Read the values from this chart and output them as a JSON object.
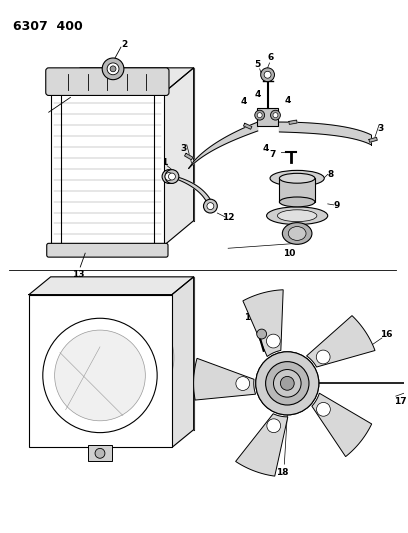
{
  "title": "6307  400",
  "bg": "#ffffff",
  "lc": "#000000",
  "gc": "#999999",
  "lgc": "#cccccc"
}
